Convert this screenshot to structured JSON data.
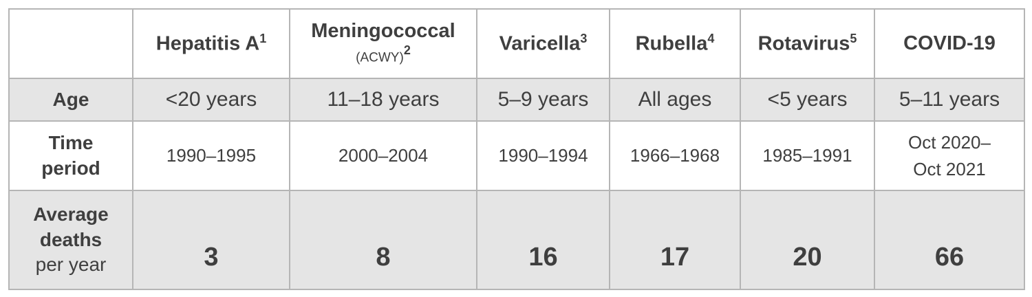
{
  "columns": [
    {
      "name": "",
      "sup": ""
    },
    {
      "name": "Hepatitis A",
      "sup": "1"
    },
    {
      "name": "Meningococcal",
      "sub": "(ACWY)",
      "sup": "2"
    },
    {
      "name": "Varicella",
      "sup": "3"
    },
    {
      "name": "Rubella",
      "sup": "4"
    },
    {
      "name": "Rotavirus",
      "sup": "5"
    },
    {
      "name": "COVID-19",
      "sup": ""
    }
  ],
  "rows": {
    "age": {
      "label": "Age",
      "values": [
        "<20 years",
        "11–18 years",
        "5–9 years",
        "All ages",
        "<5 years",
        "5–11 years"
      ]
    },
    "time": {
      "label1": "Time",
      "label2": "period",
      "values": [
        "1990–1995",
        "2000–2004",
        "1990–1994",
        "1966–1968",
        "1985–1991"
      ],
      "covid1": "Oct 2020–",
      "covid2": "Oct 2021"
    },
    "deaths": {
      "label1": "Average",
      "label2": "deaths",
      "label3": "per year",
      "values": [
        "3",
        "8",
        "16",
        "17",
        "20",
        "66"
      ]
    }
  }
}
